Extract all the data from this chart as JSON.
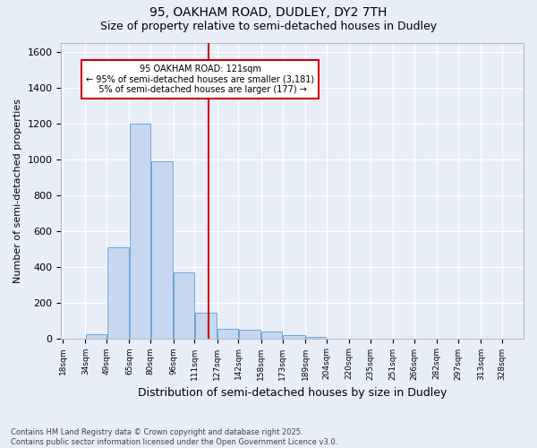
{
  "title": "95, OAKHAM ROAD, DUDLEY, DY2 7TH",
  "subtitle": "Size of property relative to semi-detached houses in Dudley",
  "xlabel": "Distribution of semi-detached houses by size in Dudley",
  "ylabel": "Number of semi-detached properties",
  "property_label": "95 OAKHAM ROAD: 121sqm",
  "pct_smaller": 95,
  "n_smaller": 3181,
  "pct_larger": 5,
  "n_larger": 177,
  "bin_edges": [
    18,
    34,
    49,
    65,
    80,
    96,
    111,
    127,
    142,
    158,
    173,
    189,
    204,
    220,
    235,
    251,
    266,
    282,
    297,
    313,
    328
  ],
  "bin_labels": [
    "18sqm",
    "34sqm",
    "49sqm",
    "65sqm",
    "80sqm",
    "96sqm",
    "111sqm",
    "127sqm",
    "142sqm",
    "158sqm",
    "173sqm",
    "189sqm",
    "204sqm",
    "220sqm",
    "235sqm",
    "251sqm",
    "266sqm",
    "282sqm",
    "297sqm",
    "313sqm",
    "328sqm"
  ],
  "bar_heights": [
    0,
    25,
    510,
    1200,
    990,
    370,
    145,
    55,
    50,
    38,
    20,
    10,
    0,
    0,
    0,
    0,
    0,
    0,
    0,
    0
  ],
  "bar_color": "#c5d8f0",
  "bar_edge_color": "#5b9bd5",
  "vline_x": 121,
  "vline_color": "#cc0000",
  "annotation_box_color": "#cc0000",
  "background_color": "#e8eef8",
  "ylim": [
    0,
    1650
  ],
  "yticks": [
    0,
    200,
    400,
    600,
    800,
    1000,
    1200,
    1400,
    1600
  ],
  "footer": "Contains HM Land Registry data © Crown copyright and database right 2025.\nContains public sector information licensed under the Open Government Licence v3.0.",
  "title_fontsize": 10,
  "subtitle_fontsize": 9,
  "ylabel_fontsize": 8,
  "xlabel_fontsize": 9,
  "footer_fontsize": 6
}
